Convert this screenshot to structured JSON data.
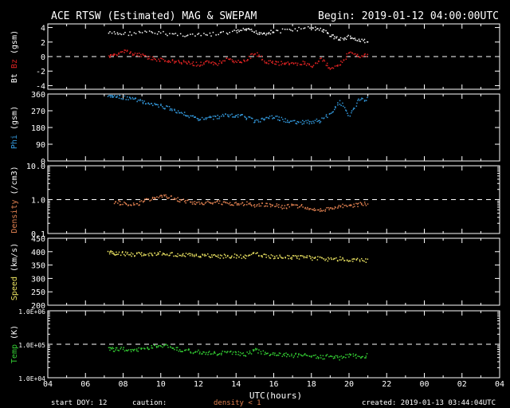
{
  "header": {
    "title": "ACE RTSW (Estimated) MAG & SWEPAM",
    "begin": "Begin: 2019-01-12 04:00:00UTC"
  },
  "footer": {
    "start_doy": "start DOY:  12",
    "caution": "caution:",
    "density_note": "density < 1",
    "created": "created: 2019-01-13 03:44:04UTC"
  },
  "colors": {
    "bt": "#ffffff",
    "bz": "#dd2222",
    "phi": "#3399dd",
    "density": "#e08050",
    "speed": "#e8e060",
    "temp": "#33cc33",
    "axis": "#ffffff"
  },
  "chart_data": {
    "type": "scatter",
    "xlabel": "UTC(hours)",
    "x_ticks": [
      "04",
      "06",
      "08",
      "10",
      "12",
      "14",
      "16",
      "18",
      "20",
      "22",
      "00",
      "02",
      "04"
    ],
    "panels": [
      {
        "id": "mag",
        "ylabel_parts": [
          "Bt",
          "Bz",
          "(gsm)"
        ],
        "ylim": [
          -4.5,
          4.5
        ],
        "ticks": [
          4,
          2,
          0,
          -2,
          -4
        ],
        "tick_labels": [
          "4",
          "2",
          "0",
          "-2",
          "-4"
        ],
        "dashed_at": 0,
        "series": [
          {
            "name": "Bt",
            "color_key": "bt",
            "x": [
              7.2,
              8.0,
              9.0,
              10.0,
              11.0,
              12.0,
              13.0,
              14.0,
              14.5,
              15.0,
              15.5,
              16.0,
              17.0,
              18.0,
              18.5,
              19.0,
              19.5,
              20.0,
              20.5,
              21.0
            ],
            "y": [
              3.3,
              3.2,
              3.4,
              3.3,
              3.1,
              3.0,
              3.2,
              3.5,
              3.8,
              3.4,
              3.3,
              3.5,
              3.8,
              4.0,
              3.8,
              3.0,
              2.4,
              2.8,
              2.2,
              2.3
            ]
          },
          {
            "name": "Bz",
            "color_key": "bz",
            "x": [
              7.2,
              7.5,
              8.0,
              8.5,
              9.0,
              9.5,
              10.0,
              10.5,
              11.0,
              11.5,
              12.0,
              12.5,
              13.0,
              13.5,
              14.0,
              14.5,
              15.0,
              15.5,
              16.0,
              16.5,
              17.0,
              17.5,
              18.0,
              18.5,
              19.0,
              19.5,
              20.0,
              20.5,
              21.0
            ],
            "y": [
              0.0,
              0.3,
              0.8,
              0.5,
              0.2,
              -0.2,
              -0.4,
              -0.5,
              -0.7,
              -0.8,
              -1.0,
              -0.6,
              -0.9,
              -0.3,
              -0.7,
              -0.4,
              0.6,
              -0.6,
              -0.8,
              -0.9,
              -0.9,
              -0.8,
              -1.3,
              -0.3,
              -1.6,
              -0.8,
              0.5,
              0.0,
              0.4
            ]
          }
        ]
      },
      {
        "id": "phi",
        "ylabel_parts": [
          "Phi",
          "(gsm)"
        ],
        "ylim": [
          0,
          360
        ],
        "ticks": [
          360,
          270,
          180,
          90,
          0
        ],
        "tick_labels": [
          "360",
          "270",
          "180",
          "90",
          "0"
        ],
        "series": [
          {
            "name": "Phi",
            "color_key": "phi",
            "x": [
              7.2,
              7.5,
              8.0,
              8.5,
              9.0,
              9.5,
              10.0,
              10.5,
              11.0,
              11.5,
              12.0,
              12.5,
              13.0,
              13.5,
              14.0,
              14.5,
              15.0,
              15.5,
              16.0,
              16.5,
              17.0,
              17.5,
              18.0,
              18.5,
              19.0,
              19.5,
              20.0,
              20.5,
              21.0
            ],
            "y": [
              355,
              352,
              345,
              335,
              320,
              305,
              300,
              285,
              265,
              240,
              230,
              235,
              240,
              250,
              245,
              240,
              215,
              230,
              240,
              225,
              210,
              210,
              215,
              220,
              260,
              320,
              250,
              330,
              340
            ]
          }
        ]
      },
      {
        "id": "density",
        "ylabel_parts": [
          "Density",
          "(/cm3)"
        ],
        "log": true,
        "ylim": [
          0.1,
          10
        ],
        "ticks": [
          10,
          1,
          0.1
        ],
        "tick_labels": [
          "10.0",
          "1.0",
          "0.1"
        ],
        "dashed_at": 1,
        "series": [
          {
            "name": "Density",
            "color_key": "density",
            "x": [
              7.5,
              8.0,
              8.5,
              9.0,
              9.5,
              10.0,
              10.5,
              11.0,
              11.5,
              12.0,
              12.5,
              13.0,
              13.5,
              14.0,
              14.5,
              15.0,
              15.5,
              16.0,
              16.5,
              17.0,
              17.5,
              18.0,
              18.5,
              19.0,
              19.5,
              20.0,
              20.5,
              21.0
            ],
            "y": [
              0.9,
              0.8,
              0.7,
              0.9,
              1.1,
              1.3,
              1.2,
              1.0,
              0.9,
              0.8,
              0.9,
              0.85,
              0.8,
              0.75,
              0.8,
              0.7,
              0.75,
              0.7,
              0.6,
              0.7,
              0.65,
              0.55,
              0.5,
              0.6,
              0.7,
              0.65,
              0.75,
              0.8
            ]
          }
        ]
      },
      {
        "id": "speed",
        "ylabel_parts": [
          "Speed",
          "(km/s)"
        ],
        "ylim": [
          200,
          450
        ],
        "ticks": [
          450,
          400,
          350,
          300,
          250,
          200
        ],
        "tick_labels": [
          "450",
          "400",
          "350",
          "300",
          "250",
          "200"
        ],
        "series": [
          {
            "name": "Speed",
            "color_key": "speed",
            "x": [
              7.2,
              7.5,
              8.0,
              8.5,
              9.0,
              9.5,
              10.0,
              10.5,
              11.0,
              11.5,
              12.0,
              12.5,
              13.0,
              13.5,
              14.0,
              14.5,
              15.0,
              15.5,
              16.0,
              16.5,
              17.0,
              17.5,
              18.0,
              18.5,
              19.0,
              19.5,
              20.0,
              20.5,
              21.0
            ],
            "y": [
              398,
              397,
              395,
              392,
              394,
              390,
              396,
              393,
              388,
              390,
              386,
              388,
              384,
              385,
              386,
              383,
              395,
              385,
              383,
              382,
              380,
              381,
              378,
              376,
              374,
              375,
              372,
              370,
              368
            ]
          }
        ]
      },
      {
        "id": "temp",
        "ylabel_parts": [
          "Temp",
          "(K)"
        ],
        "log": true,
        "ylim": [
          10000,
          1000000
        ],
        "ticks": [
          1000000,
          100000,
          10000
        ],
        "tick_labels": [
          "1.0E+06",
          "1.0E+05",
          "1.0E+04"
        ],
        "dashed_at": 100000,
        "series": [
          {
            "name": "Temp",
            "color_key": "temp",
            "x": [
              7.2,
              7.5,
              8.0,
              8.5,
              9.0,
              9.5,
              10.0,
              10.5,
              11.0,
              11.5,
              12.0,
              12.5,
              13.0,
              13.5,
              14.0,
              14.5,
              15.0,
              15.5,
              16.0,
              16.5,
              17.0,
              17.5,
              18.0,
              18.5,
              19.0,
              19.5,
              20.0,
              20.5,
              21.0
            ],
            "y": [
              80000,
              70000,
              75000,
              65000,
              80000,
              85000,
              95000,
              90000,
              70000,
              65000,
              60000,
              58000,
              55000,
              60000,
              55000,
              52000,
              70000,
              55000,
              52000,
              50000,
              48000,
              50000,
              45000,
              42000,
              46000,
              40000,
              50000,
              45000,
              48000
            ]
          }
        ]
      }
    ]
  }
}
